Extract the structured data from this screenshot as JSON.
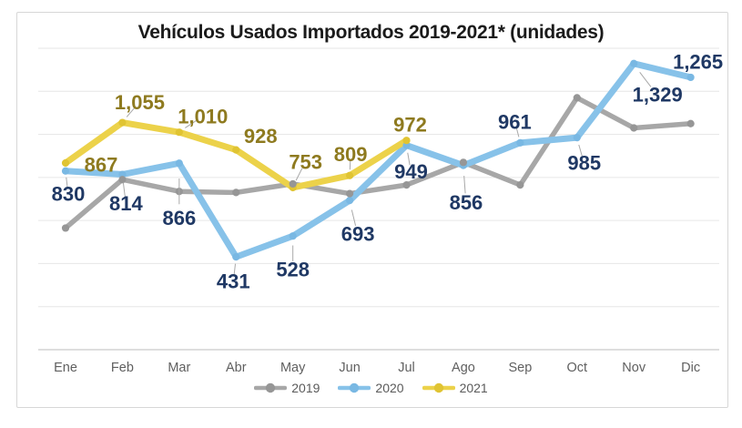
{
  "chart_data": {
    "type": "line",
    "title": "Vehículos Usados Importados 2019-2021* (unidades)",
    "categories": [
      "Ene",
      "Feb",
      "Mar",
      "Abr",
      "May",
      "Jun",
      "Jul",
      "Ago",
      "Sep",
      "Oct",
      "Nov",
      "Dic"
    ],
    "ylim": [
      0,
      1400
    ],
    "y_grid_interval": 200,
    "y_tick_labels_visible": false,
    "grid": true,
    "legend_position": "bottom-center",
    "grid_color": "#e6e6e6",
    "axis_line_color": "#c9c9c9",
    "leader_line_color": "#a8a8a8",
    "axis_text_color": "#5f5f5f",
    "title_color": "#1b1b1b",
    "series": [
      {
        "name": "2019",
        "color": "#A7A7A7",
        "marker_color": "#969696",
        "line_width": 5.5,
        "values": [
          565,
          790,
          735,
          730,
          770,
          725,
          765,
          870,
          765,
          1170,
          1030,
          1050
        ],
        "data_labels": null,
        "label_color": null,
        "label_offsets": null
      },
      {
        "name": "2020",
        "color": "#87C2E9",
        "marker_color": "#79B8E3",
        "line_width": 7,
        "values": [
          830,
          814,
          866,
          431,
          528,
          693,
          949,
          856,
          961,
          985,
          1329,
          1265
        ],
        "data_labels": [
          "830",
          "814",
          "866",
          "431",
          "528",
          "693",
          "949",
          "856",
          "961",
          "985",
          "1,329",
          "1,265"
        ],
        "label_color": "#1F3864",
        "label_offsets": [
          [
            3,
            25,
            1
          ],
          [
            4,
            32,
            1
          ],
          [
            0,
            60,
            1
          ],
          [
            -3,
            27,
            1
          ],
          [
            0,
            37,
            1
          ],
          [
            9,
            37,
            1
          ],
          [
            5,
            29,
            1
          ],
          [
            3,
            41,
            1
          ],
          [
            -6,
            -23,
            1
          ],
          [
            8,
            28,
            1
          ],
          [
            26,
            34,
            1
          ],
          [
            8,
            -17,
            0
          ]
        ]
      },
      {
        "name": "2021",
        "color": "#ECD24A",
        "marker_color": "#E0C433",
        "line_width": 7,
        "values": [
          867,
          1055,
          1010,
          928,
          753,
          809,
          972,
          null,
          null,
          null,
          null,
          null
        ],
        "data_labels": [
          "867",
          "1,055",
          "1,010",
          "928",
          "753",
          "809",
          "972",
          null,
          null,
          null,
          null,
          null
        ],
        "label_color": "#8E7A1F",
        "label_offsets": [
          [
            39,
            2,
            0
          ],
          [
            19,
            -22,
            1
          ],
          [
            26,
            -17,
            1
          ],
          [
            27,
            -15,
            0
          ],
          [
            14,
            -28,
            1
          ],
          [
            1,
            -23,
            1
          ],
          [
            4,
            -17,
            0
          ],
          null,
          null,
          null,
          null,
          null
        ]
      }
    ]
  }
}
